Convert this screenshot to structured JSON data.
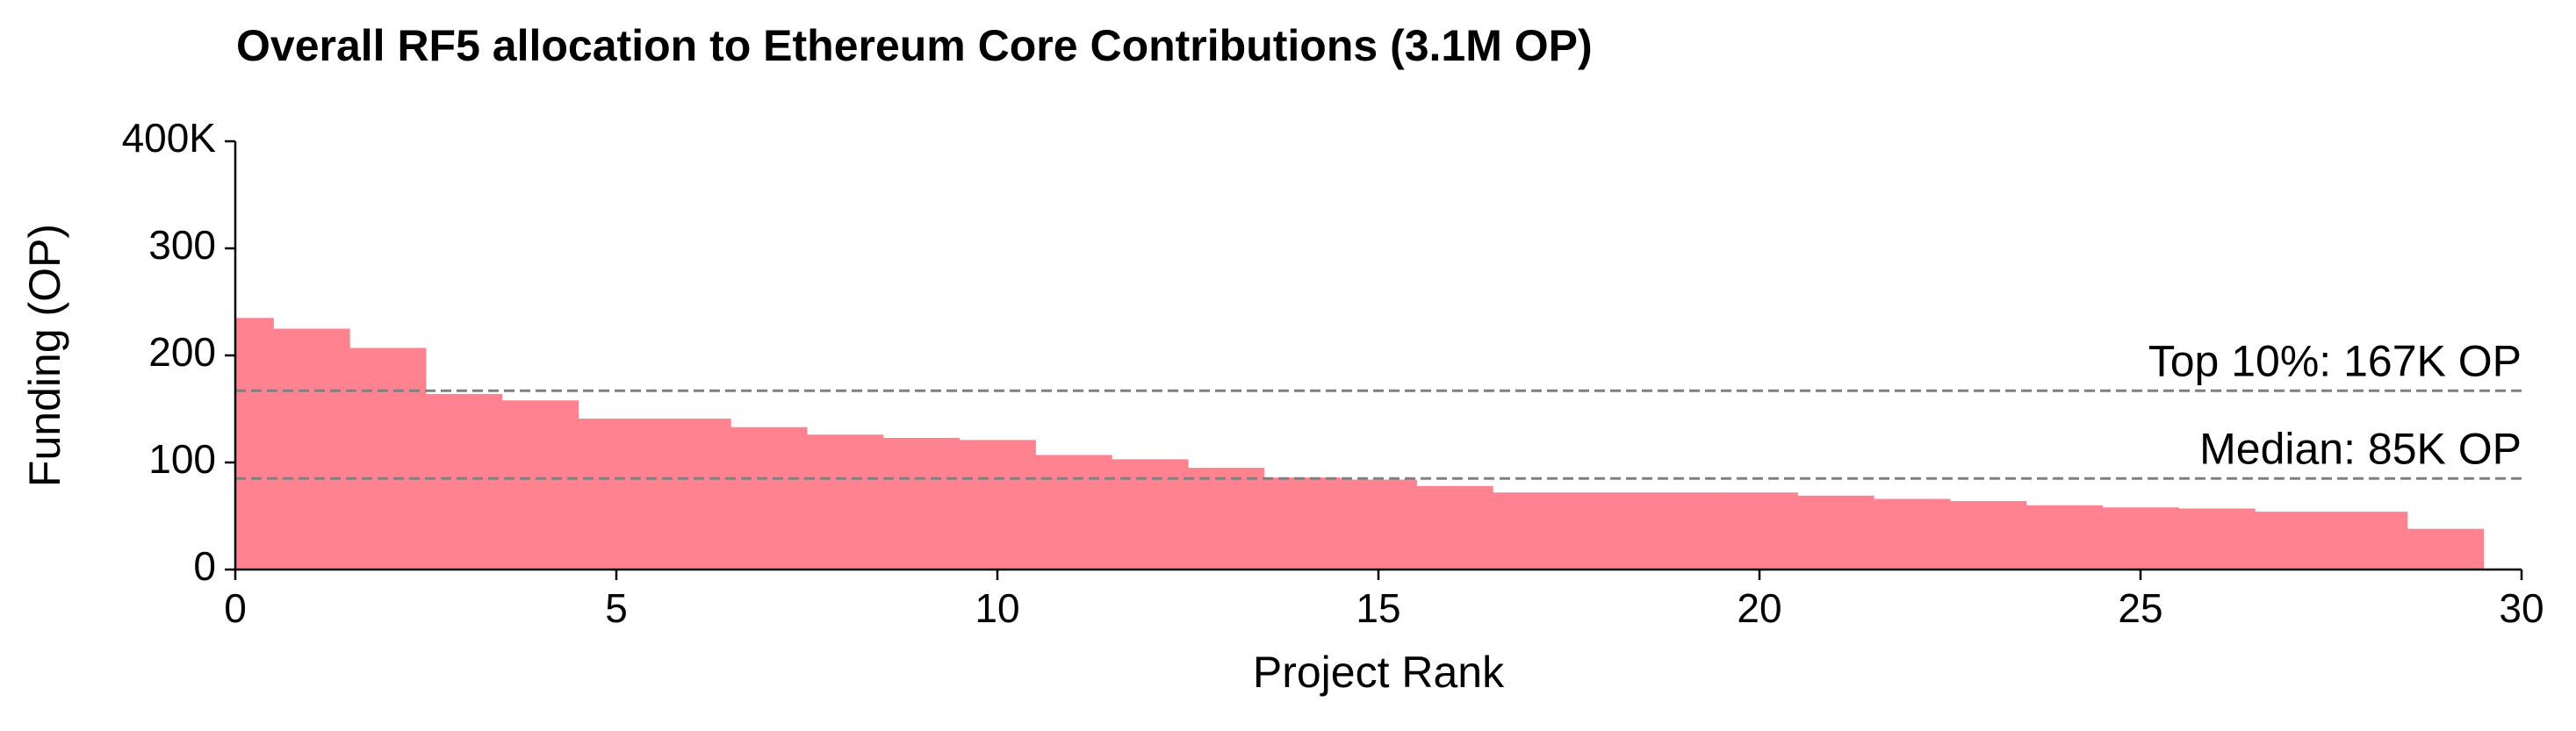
{
  "chart_data": {
    "type": "bar",
    "title": "Overall RF5 allocation to Ethereum Core Contributions (3.1M OP)",
    "x_label": "Project Rank",
    "y_label": "Funding (OP)",
    "x": [
      0,
      1,
      2,
      3,
      4,
      5,
      6,
      7,
      8,
      9,
      10,
      11,
      12,
      13,
      14,
      15,
      16,
      17,
      18,
      19,
      20,
      21,
      22,
      23,
      24,
      25,
      26,
      27,
      28,
      29
    ],
    "values": [
      235,
      225,
      207,
      164,
      158,
      141,
      141,
      133,
      126,
      123,
      121,
      107,
      103,
      95,
      86,
      84,
      78,
      72,
      72,
      72,
      72,
      69,
      66,
      64,
      60,
      58,
      57,
      54,
      54,
      38
    ],
    "color": "#ff8290",
    "xlim": [
      0,
      30
    ],
    "xticks": [
      0,
      5,
      10,
      15,
      20,
      25,
      30
    ],
    "ylim": [
      0,
      400
    ],
    "yticks": [
      0,
      100,
      200,
      300,
      {
        "value": 400,
        "label": "400K"
      }
    ],
    "reference_lines": [
      {
        "value": 167,
        "label": "Top 10%: 167K OP"
      },
      {
        "value": 85,
        "label": "Median: 85K OP"
      }
    ],
    "reference_color": "#808080"
  }
}
